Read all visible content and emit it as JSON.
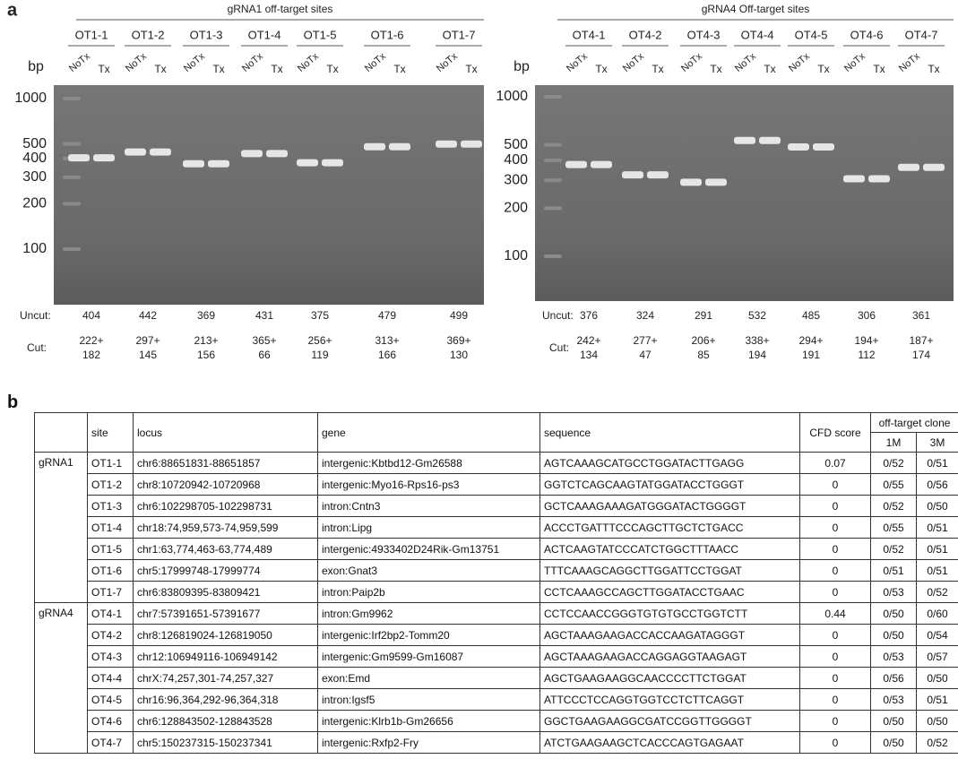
{
  "panel_a": {
    "label": "a",
    "gels": [
      {
        "title": "gRNA1 off-target sites",
        "bp_label": "bp",
        "ladder": [
          1000,
          500,
          400,
          300,
          200,
          100
        ],
        "sites": [
          "OT1-1",
          "OT1-2",
          "OT1-3",
          "OT1-4",
          "OT1-5",
          "OT1-6",
          "OT1-7"
        ],
        "lane_labels": [
          "NoTx",
          "Tx"
        ],
        "uncut_label": "Uncut:",
        "uncut": [
          404,
          442,
          369,
          431,
          375,
          479,
          499
        ],
        "cut_label": "Cut:",
        "cut": [
          [
            "222+",
            "182"
          ],
          [
            "297+",
            "145"
          ],
          [
            "213+",
            "156"
          ],
          [
            "365+",
            "66"
          ],
          [
            "256+",
            "119"
          ],
          [
            "313+",
            "166"
          ],
          [
            "369+",
            "130"
          ]
        ]
      },
      {
        "title": "gRNA4 Off-target sites",
        "bp_label": "bp",
        "ladder": [
          1000,
          500,
          400,
          300,
          200,
          100
        ],
        "sites": [
          "OT4-1",
          "OT4-2",
          "OT4-3",
          "OT4-4",
          "OT4-5",
          "OT4-6",
          "OT4-7"
        ],
        "lane_labels": [
          "NoTx",
          "Tx"
        ],
        "uncut_label": "Uncut:",
        "uncut": [
          376,
          324,
          291,
          532,
          485,
          306,
          361
        ],
        "cut_label": "Cut:",
        "cut": [
          [
            "242+",
            "134"
          ],
          [
            "277+",
            "47"
          ],
          [
            "206+",
            "85"
          ],
          [
            "338+",
            "194"
          ],
          [
            "294+",
            "191"
          ],
          [
            "194+",
            "112"
          ],
          [
            "187+",
            "174"
          ]
        ]
      }
    ]
  },
  "panel_b": {
    "label": "b",
    "table": {
      "headers": [
        "site",
        "locus",
        "gene",
        "sequence",
        "CFD score",
        "off-target clone"
      ],
      "subheaders": [
        "1M",
        "3M"
      ],
      "groups": [
        {
          "name": "gRNA1",
          "rows": [
            [
              "OT1-1",
              "chr6:88651831-88651857",
              "intergenic:Kbtbd12-Gm26588",
              "AGTCAAAGCATGCCTGGATACTTGAGG",
              "0.07",
              "0/52",
              "0/51"
            ],
            [
              "OT1-2",
              "chr8:10720942-10720968",
              "intergenic:Myo16-Rps16-ps3",
              "GGTCTCAGCAAGTATGGATACCTGGGT",
              "0",
              "0/55",
              "0/56"
            ],
            [
              "OT1-3",
              "chr6:102298705-102298731",
              "intron:Cntn3",
              "GCTCAAAGAAAGATGGGATACTGGGGT",
              "0",
              "0/52",
              "0/50"
            ],
            [
              "OT1-4",
              "chr18:74,959,573-74,959,599",
              "intron:Lipg",
              "ACCCTGATTTCCCAGCTTGCTCTGACC",
              "0",
              "0/55",
              "0/51"
            ],
            [
              "OT1-5",
              "chr1:63,774,463-63,774,489",
              "intergenic:4933402D24Rik-Gm13751",
              "ACTCAAGTATCCCATCTGGCTTTAACC",
              "0",
              "0/52",
              "0/51"
            ],
            [
              "OT1-6",
              "chr5:17999748-17999774",
              "exon:Gnat3",
              "TTTCAAAGCAGGCTTGGATTCCTGGAT",
              "0",
              "0/51",
              "0/51"
            ],
            [
              "OT1-7",
              "chr6:83809395-83809421",
              "intron:Paip2b",
              "CCTCAAAGCCAGCTTGGATACCTGAAC",
              "0",
              "0/53",
              "0/52"
            ]
          ]
        },
        {
          "name": "gRNA4",
          "rows": [
            [
              "OT4-1",
              "chr7:57391651-57391677",
              "intron:Gm9962",
              "CCTCCAACCGGGTGTGTGCCTGGTCTT",
              "0.44",
              "0/50",
              "0/60"
            ],
            [
              "OT4-2",
              "chr8:126819024-126819050",
              "intergenic:Irf2bp2-Tomm20",
              "AGCTAAAGAAGACCACCAAGATAGGGT",
              "0",
              "0/50",
              "0/54"
            ],
            [
              "OT4-3",
              "chr12:106949116-106949142",
              "intergenic:Gm9599-Gm16087",
              "AGCTAAAGAAGACCAGGAGGTAAGAGT",
              "0",
              "0/53",
              "0/57"
            ],
            [
              "OT4-4",
              "chrX:74,257,301-74,257,327",
              "exon:Emd",
              "AGCTGAAGAAGGCAACCCCTTCTGGAT",
              "0",
              "0/56",
              "0/50"
            ],
            [
              "OT4-5",
              "chr16:96,364,292-96,364,318",
              "intron:Igsf5",
              "ATTCCCTCCAGGTGGTCCTCTTCAGGT",
              "0",
              "0/53",
              "0/51"
            ],
            [
              "OT4-6",
              "chr6:128843502-128843528",
              "intergenic:Klrb1b-Gm26656",
              "GGCTGAAGAAGGCGATCCGGTTGGGGT",
              "0",
              "0/50",
              "0/50"
            ],
            [
              "OT4-7",
              "chr5:150237315-150237341",
              "intergenic:Rxfp2-Fry",
              "ATCTGAAGAAGCTCACCCAGTGAGAAT",
              "0",
              "0/50",
              "0/52"
            ]
          ]
        }
      ]
    }
  }
}
